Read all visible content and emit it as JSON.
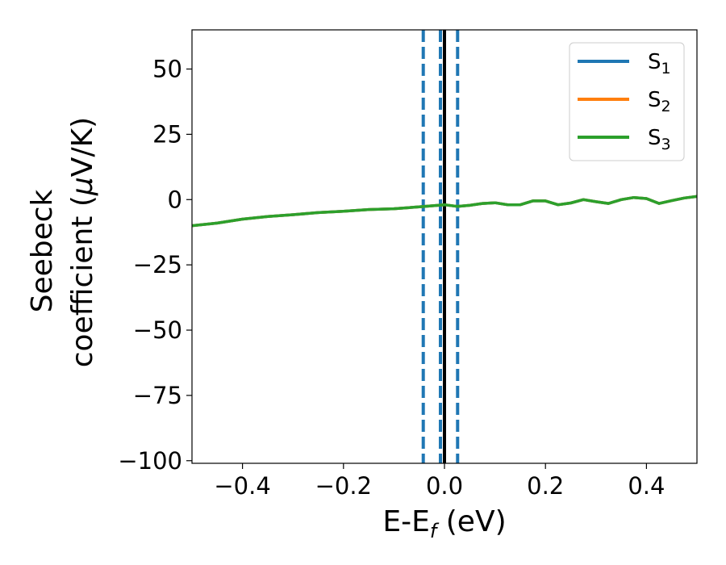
{
  "chart_data": {
    "type": "line",
    "xlabel_main": "E-E",
    "xlabel_sub": "f",
    "xlabel_unit": " (eV)",
    "ylabel_line1": "Seebeck",
    "ylabel_line2_text": "coefficient  (",
    "ylabel_mu": "μ",
    "ylabel_line2_unit": "V/K)",
    "xlim": [
      -0.5,
      0.5
    ],
    "ylim": [
      -101,
      65
    ],
    "x_ticks": [
      -0.4,
      -0.2,
      0.0,
      0.2,
      0.4
    ],
    "x_tick_labels": [
      "−0.4",
      "−0.2",
      "0.0",
      "0.2",
      "0.4"
    ],
    "y_ticks": [
      50,
      25,
      0,
      -25,
      -50,
      -75,
      -100
    ],
    "y_tick_labels": [
      "50",
      "25",
      "0",
      "−25",
      "−50",
      "−75",
      "−100"
    ],
    "grid": false,
    "legend_position": "top-right",
    "vertical_lines": [
      {
        "x": -0.042,
        "style": "dashed",
        "color": "#1f77b4"
      },
      {
        "x": -0.008,
        "style": "dashed",
        "color": "#1f77b4"
      },
      {
        "x": 0.026,
        "style": "dashed",
        "color": "#1f77b4"
      },
      {
        "x": 0.0,
        "style": "solid",
        "color": "#000000"
      }
    ],
    "series": [
      {
        "name": "S",
        "sub": "1",
        "color": "#1f77b4",
        "x": [
          -0.5,
          -0.45,
          -0.4,
          -0.35,
          -0.3,
          -0.25,
          -0.2,
          -0.15,
          -0.1,
          -0.05,
          0.0,
          0.025,
          0.05,
          0.075,
          0.1,
          0.125,
          0.15,
          0.175,
          0.2,
          0.225,
          0.25,
          0.275,
          0.3,
          0.325,
          0.35,
          0.375,
          0.4,
          0.425,
          0.45,
          0.475,
          0.5
        ],
        "y": [
          -10,
          -9,
          -7.5,
          -6.5,
          -5.8,
          -5,
          -4.5,
          -3.8,
          -3.5,
          -2.8,
          -2,
          -2.6,
          -2.2,
          -1.5,
          -1.2,
          -2,
          -2,
          -0.5,
          -0.5,
          -2,
          -1.3,
          0,
          -0.8,
          -1.5,
          0,
          0.8,
          0.4,
          -1.5,
          -0.4,
          0.6,
          1.2
        ]
      },
      {
        "name": "S",
        "sub": "2",
        "color": "#ff7f0e",
        "x": [
          -0.5,
          -0.45,
          -0.4,
          -0.35,
          -0.3,
          -0.25,
          -0.2,
          -0.15,
          -0.1,
          -0.05,
          0.0,
          0.025,
          0.05,
          0.075,
          0.1,
          0.125,
          0.15,
          0.175,
          0.2,
          0.225,
          0.25,
          0.275,
          0.3,
          0.325,
          0.35,
          0.375,
          0.4,
          0.425,
          0.45,
          0.475,
          0.5
        ],
        "y": [
          -10,
          -9,
          -7.5,
          -6.5,
          -5.8,
          -5,
          -4.5,
          -3.8,
          -3.5,
          -2.8,
          -2,
          -2.6,
          -2.2,
          -1.5,
          -1.2,
          -2,
          -2,
          -0.5,
          -0.5,
          -2,
          -1.3,
          0,
          -0.8,
          -1.5,
          0,
          0.8,
          0.4,
          -1.5,
          -0.4,
          0.6,
          1.2
        ]
      },
      {
        "name": "S",
        "sub": "3",
        "color": "#2ca02c",
        "x": [
          -0.5,
          -0.45,
          -0.4,
          -0.35,
          -0.3,
          -0.25,
          -0.2,
          -0.15,
          -0.1,
          -0.05,
          0.0,
          0.025,
          0.05,
          0.075,
          0.1,
          0.125,
          0.15,
          0.175,
          0.2,
          0.225,
          0.25,
          0.275,
          0.3,
          0.325,
          0.35,
          0.375,
          0.4,
          0.425,
          0.45,
          0.475,
          0.5
        ],
        "y": [
          -10,
          -9,
          -7.5,
          -6.5,
          -5.8,
          -5,
          -4.5,
          -3.8,
          -3.5,
          -2.8,
          -2,
          -2.6,
          -2.2,
          -1.5,
          -1.2,
          -2,
          -2,
          -0.5,
          -0.5,
          -2,
          -1.3,
          0,
          -0.8,
          -1.5,
          0,
          0.8,
          0.4,
          -1.5,
          -0.4,
          0.6,
          1.2
        ]
      }
    ]
  }
}
